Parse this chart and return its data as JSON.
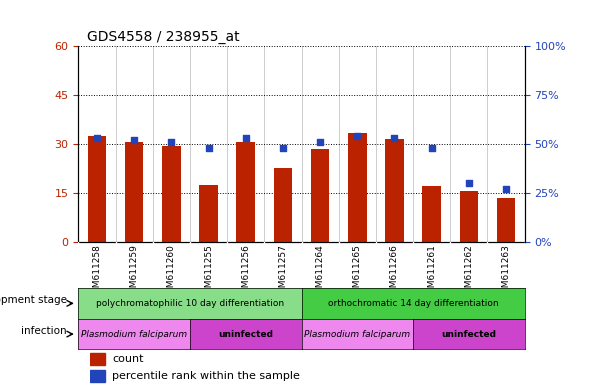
{
  "title": "GDS4558 / 238955_at",
  "categories": [
    "GSM611258",
    "GSM611259",
    "GSM611260",
    "GSM611255",
    "GSM611256",
    "GSM611257",
    "GSM611264",
    "GSM611265",
    "GSM611266",
    "GSM611261",
    "GSM611262",
    "GSM611263"
  ],
  "counts": [
    32.5,
    30.5,
    29.5,
    17.5,
    30.5,
    22.5,
    28.5,
    33.5,
    31.5,
    17.0,
    15.5,
    13.5
  ],
  "percentile_ranks": [
    53,
    52,
    51,
    48,
    53,
    48,
    51,
    54,
    53,
    48,
    30,
    27
  ],
  "ylim_left": [
    0,
    60
  ],
  "ylim_right": [
    0,
    100
  ],
  "yticks_left": [
    0,
    15,
    30,
    45,
    60
  ],
  "yticks_right": [
    0,
    25,
    50,
    75,
    100
  ],
  "bar_color": "#bb2200",
  "dot_color": "#2244bb",
  "background_color": "#ffffff",
  "dev_stage_groups": [
    {
      "label": "polychromatophilic 10 day differentiation",
      "start": 0,
      "end": 5,
      "color": "#88dd88"
    },
    {
      "label": "orthochromatic 14 day differentiation",
      "start": 6,
      "end": 11,
      "color": "#44cc44"
    }
  ],
  "infection_groups": [
    {
      "label": "Plasmodium falciparum",
      "start": 0,
      "end": 2,
      "color": "#ee88ee"
    },
    {
      "label": "uninfected",
      "start": 3,
      "end": 5,
      "color": "#cc44cc"
    },
    {
      "label": "Plasmodium falciparum",
      "start": 6,
      "end": 8,
      "color": "#ee88ee"
    },
    {
      "label": "uninfected",
      "start": 9,
      "end": 11,
      "color": "#cc44cc"
    }
  ],
  "legend_count_label": "count",
  "legend_pct_label": "percentile rank within the sample",
  "dev_stage_label": "development stage",
  "infection_label": "infection"
}
